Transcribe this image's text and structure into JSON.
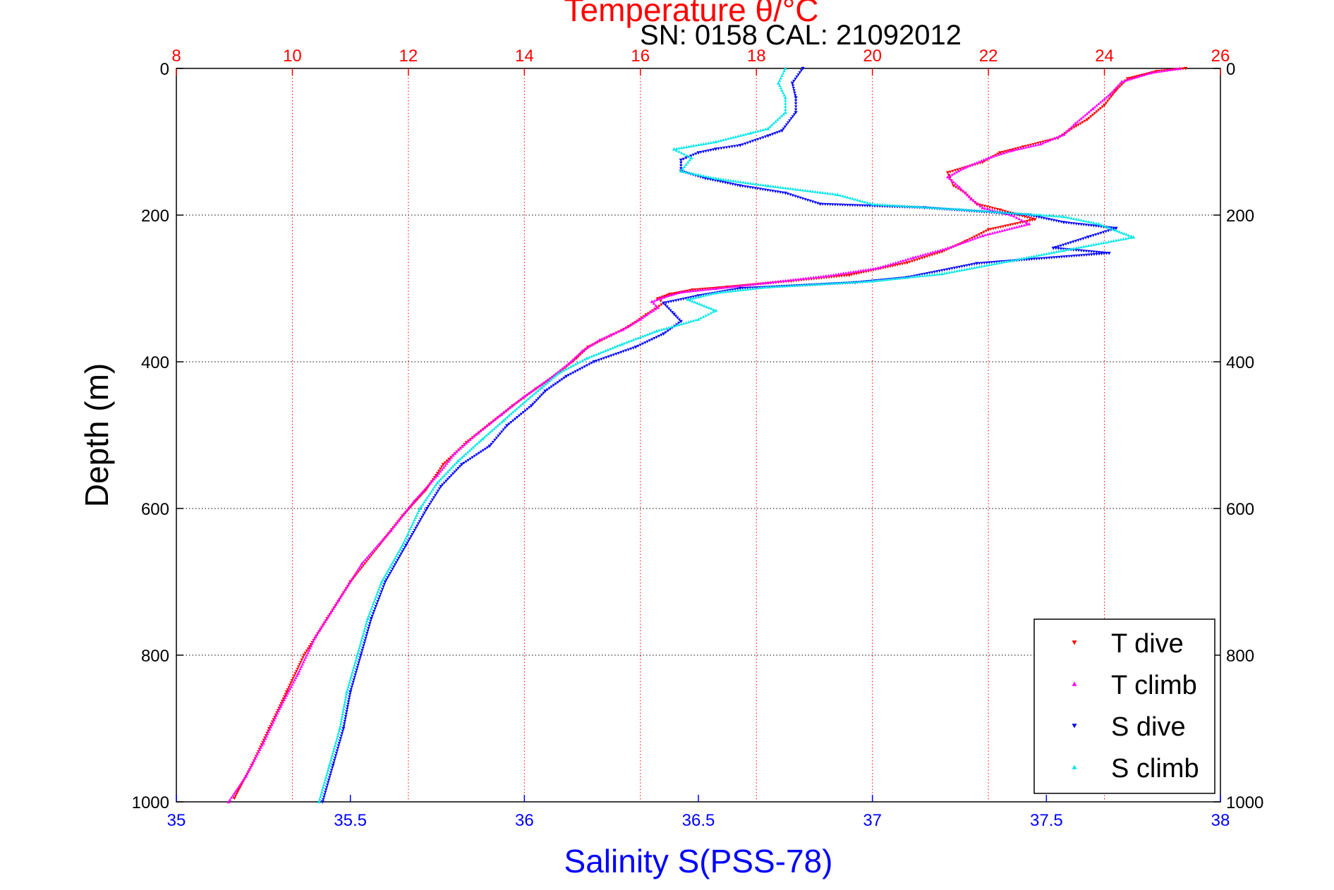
{
  "chart_data": {
    "type": "scatter",
    "title": "Temperature θ/°C",
    "subtitle": "SN: 0158   CAL: 21092012",
    "xlabel_bottom": "Salinity S(PSS-78)",
    "ylabel": "Depth (m)",
    "xlim_salinity": [
      35,
      38
    ],
    "xlim_temperature": [
      8,
      26
    ],
    "ylim_depth": [
      0,
      1000
    ],
    "salinity_ticks": [
      "35",
      "35.5",
      "36",
      "36.5",
      "37",
      "37.5",
      "38"
    ],
    "temperature_ticks": [
      "8",
      "10",
      "12",
      "14",
      "16",
      "18",
      "20",
      "22",
      "24",
      "26"
    ],
    "depth_ticks": [
      "0",
      "200",
      "400",
      "600",
      "800",
      "1000"
    ],
    "series": [
      {
        "name": "T dive",
        "axis": "temperature",
        "marker": "down-triangle",
        "color": "#ff0000",
        "points": [
          [
            25.4,
            0
          ],
          [
            24.9,
            4
          ],
          [
            24.4,
            14
          ],
          [
            24.2,
            30
          ],
          [
            24.0,
            50
          ],
          [
            23.7,
            70
          ],
          [
            23.4,
            84
          ],
          [
            23.2,
            95
          ],
          [
            22.6,
            107
          ],
          [
            22.2,
            115
          ],
          [
            21.9,
            128
          ],
          [
            21.3,
            142
          ],
          [
            21.4,
            160
          ],
          [
            21.6,
            170
          ],
          [
            21.8,
            185
          ],
          [
            22.2,
            193
          ],
          [
            22.8,
            206
          ],
          [
            22.0,
            220
          ],
          [
            21.6,
            236
          ],
          [
            21.2,
            250
          ],
          [
            20.6,
            265
          ],
          [
            19.6,
            282
          ],
          [
            18.6,
            290
          ],
          [
            17.5,
            298
          ],
          [
            16.9,
            302
          ],
          [
            16.5,
            308
          ],
          [
            16.3,
            314
          ],
          [
            16.4,
            320
          ],
          [
            16.1,
            336
          ],
          [
            15.8,
            352
          ],
          [
            15.5,
            364
          ],
          [
            15.1,
            380
          ],
          [
            14.9,
            395
          ],
          [
            14.6,
            415
          ],
          [
            14.2,
            437
          ],
          [
            13.8,
            460
          ],
          [
            13.4,
            485
          ],
          [
            13.0,
            510
          ],
          [
            12.6,
            540
          ],
          [
            12.3,
            575
          ],
          [
            11.9,
            610
          ],
          [
            11.5,
            650
          ],
          [
            11.0,
            700
          ],
          [
            10.6,
            750
          ],
          [
            10.2,
            800
          ],
          [
            9.9,
            850
          ],
          [
            9.6,
            900
          ],
          [
            9.3,
            950
          ],
          [
            9.0,
            995
          ]
        ]
      },
      {
        "name": "T climb",
        "axis": "temperature",
        "marker": "up-triangle",
        "color": "#ff00ff",
        "points": [
          [
            25.3,
            0
          ],
          [
            24.8,
            6
          ],
          [
            24.3,
            18
          ],
          [
            24.1,
            35
          ],
          [
            23.8,
            55
          ],
          [
            23.5,
            75
          ],
          [
            23.3,
            90
          ],
          [
            22.9,
            103
          ],
          [
            22.4,
            112
          ],
          [
            22.0,
            122
          ],
          [
            21.6,
            135
          ],
          [
            21.3,
            148
          ],
          [
            21.5,
            162
          ],
          [
            21.7,
            178
          ],
          [
            21.9,
            190
          ],
          [
            22.4,
            200
          ],
          [
            22.7,
            212
          ],
          [
            21.9,
            228
          ],
          [
            21.3,
            245
          ],
          [
            20.7,
            258
          ],
          [
            20.1,
            272
          ],
          [
            19.2,
            283
          ],
          [
            18.2,
            292
          ],
          [
            17.3,
            300
          ],
          [
            16.7,
            305
          ],
          [
            16.4,
            312
          ],
          [
            16.2,
            318
          ],
          [
            16.3,
            326
          ],
          [
            16.0,
            342
          ],
          [
            15.7,
            356
          ],
          [
            15.3,
            370
          ],
          [
            15.0,
            385
          ],
          [
            14.8,
            400
          ],
          [
            14.4,
            425
          ],
          [
            14.0,
            447
          ],
          [
            13.6,
            472
          ],
          [
            13.2,
            497
          ],
          [
            12.8,
            525
          ],
          [
            12.5,
            555
          ],
          [
            12.1,
            590
          ],
          [
            11.7,
            630
          ],
          [
            11.2,
            675
          ],
          [
            10.8,
            725
          ],
          [
            10.4,
            775
          ],
          [
            10.1,
            825
          ],
          [
            9.8,
            870
          ],
          [
            9.5,
            920
          ],
          [
            9.2,
            965
          ],
          [
            8.9,
            1000
          ]
        ]
      },
      {
        "name": "S dive",
        "axis": "salinity",
        "marker": "down-triangle",
        "color": "#0000ff",
        "points": [
          [
            36.8,
            0
          ],
          [
            36.77,
            20
          ],
          [
            36.78,
            40
          ],
          [
            36.78,
            60
          ],
          [
            36.74,
            85
          ],
          [
            36.7,
            92
          ],
          [
            36.62,
            105
          ],
          [
            36.55,
            110
          ],
          [
            36.5,
            115
          ],
          [
            36.45,
            125
          ],
          [
            36.45,
            140
          ],
          [
            36.52,
            150
          ],
          [
            36.62,
            160
          ],
          [
            36.75,
            170
          ],
          [
            36.85,
            185
          ],
          [
            37.15,
            190
          ],
          [
            37.45,
            200
          ],
          [
            37.55,
            210
          ],
          [
            37.7,
            218
          ],
          [
            37.62,
            230
          ],
          [
            37.52,
            245
          ],
          [
            37.68,
            252
          ],
          [
            37.3,
            266
          ],
          [
            37.1,
            285
          ],
          [
            36.95,
            292
          ],
          [
            36.62,
            300
          ],
          [
            36.5,
            310
          ],
          [
            36.4,
            320
          ],
          [
            36.43,
            335
          ],
          [
            36.45,
            345
          ],
          [
            36.4,
            362
          ],
          [
            36.32,
            380
          ],
          [
            36.2,
            400
          ],
          [
            36.12,
            420
          ],
          [
            36.06,
            440
          ],
          [
            36.02,
            460
          ],
          [
            35.95,
            487
          ],
          [
            35.9,
            515
          ],
          [
            35.82,
            540
          ],
          [
            35.76,
            570
          ],
          [
            35.72,
            600
          ],
          [
            35.66,
            650
          ],
          [
            35.6,
            700
          ],
          [
            35.56,
            750
          ],
          [
            35.53,
            800
          ],
          [
            35.5,
            850
          ],
          [
            35.48,
            900
          ],
          [
            35.45,
            950
          ],
          [
            35.42,
            1000
          ]
        ]
      },
      {
        "name": "S climb",
        "axis": "salinity",
        "marker": "up-triangle",
        "color": "#00e6e6",
        "points": [
          [
            36.75,
            0
          ],
          [
            36.73,
            20
          ],
          [
            36.75,
            40
          ],
          [
            36.75,
            60
          ],
          [
            36.7,
            82
          ],
          [
            36.65,
            88
          ],
          [
            36.55,
            100
          ],
          [
            36.43,
            110
          ],
          [
            36.48,
            122
          ],
          [
            36.45,
            140
          ],
          [
            36.55,
            150
          ],
          [
            36.7,
            160
          ],
          [
            36.9,
            172
          ],
          [
            37.0,
            185
          ],
          [
            37.25,
            192
          ],
          [
            37.55,
            202
          ],
          [
            37.65,
            212
          ],
          [
            37.75,
            230
          ],
          [
            37.55,
            248
          ],
          [
            37.4,
            262
          ],
          [
            37.2,
            280
          ],
          [
            37.0,
            290
          ],
          [
            36.7,
            298
          ],
          [
            36.55,
            306
          ],
          [
            36.47,
            315
          ],
          [
            36.55,
            330
          ],
          [
            36.5,
            342
          ],
          [
            36.38,
            358
          ],
          [
            36.28,
            376
          ],
          [
            36.18,
            395
          ],
          [
            36.1,
            415
          ],
          [
            36.05,
            435
          ],
          [
            36.0,
            455
          ],
          [
            35.94,
            480
          ],
          [
            35.88,
            505
          ],
          [
            35.81,
            535
          ],
          [
            35.75,
            565
          ],
          [
            35.7,
            600
          ],
          [
            35.65,
            650
          ],
          [
            35.59,
            700
          ],
          [
            35.55,
            750
          ],
          [
            35.52,
            800
          ],
          [
            35.49,
            850
          ],
          [
            35.47,
            900
          ],
          [
            35.44,
            950
          ],
          [
            35.41,
            1000
          ]
        ]
      }
    ]
  }
}
